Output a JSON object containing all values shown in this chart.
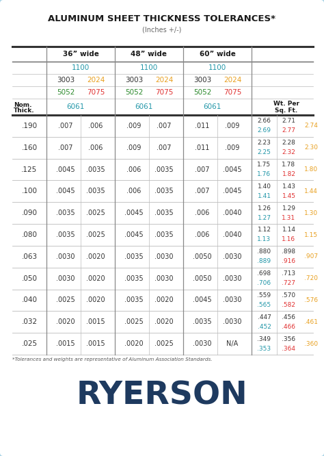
{
  "title": "ALUMINUM SHEET THICKNESS TOLERANCES*",
  "subtitle": "(Inches +/-)",
  "footnote": "*Tolerances and weights are representative of Aluminum Association Standards.",
  "brand": "RYERSON",
  "rows": [
    {
      "thick": ".190",
      "w36": [
        ".007",
        ".006"
      ],
      "w48": [
        ".009",
        ".007"
      ],
      "w60": [
        ".011",
        ".009"
      ],
      "wt": [
        [
          "2.66",
          "2.71"
        ],
        [
          "2.69",
          "2.77"
        ]
      ],
      "wt7075": "2.74"
    },
    {
      "thick": ".160",
      "w36": [
        ".007",
        ".006"
      ],
      "w48": [
        ".009",
        ".007"
      ],
      "w60": [
        ".011",
        ".009"
      ],
      "wt": [
        [
          "2.23",
          "2.28"
        ],
        [
          "2.25",
          "2.32"
        ]
      ],
      "wt7075": "2.30"
    },
    {
      "thick": ".125",
      "w36": [
        ".0045",
        ".0035"
      ],
      "w48": [
        ".006",
        ".0035"
      ],
      "w60": [
        ".007",
        ".0045"
      ],
      "wt": [
        [
          "1.75",
          "1.78"
        ],
        [
          "1.76",
          "1.82"
        ]
      ],
      "wt7075": "1.80"
    },
    {
      "thick": ".100",
      "w36": [
        ".0045",
        ".0035"
      ],
      "w48": [
        ".006",
        ".0035"
      ],
      "w60": [
        ".007",
        ".0045"
      ],
      "wt": [
        [
          "1.40",
          "1.43"
        ],
        [
          "1.41",
          "1.45"
        ]
      ],
      "wt7075": "1.44"
    },
    {
      "thick": ".090",
      "w36": [
        ".0035",
        ".0025"
      ],
      "w48": [
        ".0045",
        ".0035"
      ],
      "w60": [
        ".006",
        ".0040"
      ],
      "wt": [
        [
          "1.26",
          "1.29"
        ],
        [
          "1.27",
          "1.31"
        ]
      ],
      "wt7075": "1.30"
    },
    {
      "thick": ".080",
      "w36": [
        ".0035",
        ".0025"
      ],
      "w48": [
        ".0045",
        ".0035"
      ],
      "w60": [
        ".006",
        ".0040"
      ],
      "wt": [
        [
          "1.12",
          "1.14"
        ],
        [
          "1.13",
          "1.16"
        ]
      ],
      "wt7075": "1.15"
    },
    {
      "thick": ".063",
      "w36": [
        ".0030",
        ".0020"
      ],
      "w48": [
        ".0035",
        ".0030"
      ],
      "w60": [
        ".0050",
        ".0030"
      ],
      "wt": [
        [
          ".880",
          ".898"
        ],
        [
          ".889",
          ".916"
        ]
      ],
      "wt7075": ".907"
    },
    {
      "thick": ".050",
      "w36": [
        ".0030",
        ".0020"
      ],
      "w48": [
        ".0035",
        ".0030"
      ],
      "w60": [
        ".0050",
        ".0030"
      ],
      "wt": [
        [
          ".698",
          ".713"
        ],
        [
          ".706",
          ".727"
        ]
      ],
      "wt7075": ".720"
    },
    {
      "thick": ".040",
      "w36": [
        ".0025",
        ".0020"
      ],
      "w48": [
        ".0035",
        ".0020"
      ],
      "w60": [
        ".0045",
        ".0030"
      ],
      "wt": [
        [
          ".559",
          ".570"
        ],
        [
          ".565",
          ".582"
        ]
      ],
      "wt7075": ".576"
    },
    {
      "thick": ".032",
      "w36": [
        ".0020",
        ".0015"
      ],
      "w48": [
        ".0025",
        ".0020"
      ],
      "w60": [
        ".0035",
        ".0030"
      ],
      "wt": [
        [
          ".447",
          ".456"
        ],
        [
          ".452",
          ".466"
        ]
      ],
      "wt7075": ".461"
    },
    {
      "thick": ".025",
      "w36": [
        ".0015",
        ".0015"
      ],
      "w48": [
        ".0020",
        ".0025"
      ],
      "w60": [
        ".0030",
        "N/A"
      ],
      "wt": [
        [
          ".349",
          ".356"
        ],
        [
          ".353",
          ".364"
        ]
      ],
      "wt7075": ".360"
    }
  ],
  "colors": {
    "bg": "#ffffff",
    "border": "#a8d4e6",
    "thick_text": "#333333",
    "tol_text": "#333333",
    "wt_black": "#333333",
    "wt_blue": "#2196a8",
    "wt_red": "#e03030",
    "wt_orange": "#e8a020",
    "alloy_1100": "#2196a8",
    "alloy_3003": "#333333",
    "alloy_2024": "#e8a020",
    "alloy_5052": "#2e8b2e",
    "alloy_7075": "#e03030",
    "alloy_6061": "#2196a8",
    "brand": "#1e3a5f",
    "subtitle": "#666666",
    "line_heavy": "#333333",
    "line_light": "#bbbbbb"
  }
}
